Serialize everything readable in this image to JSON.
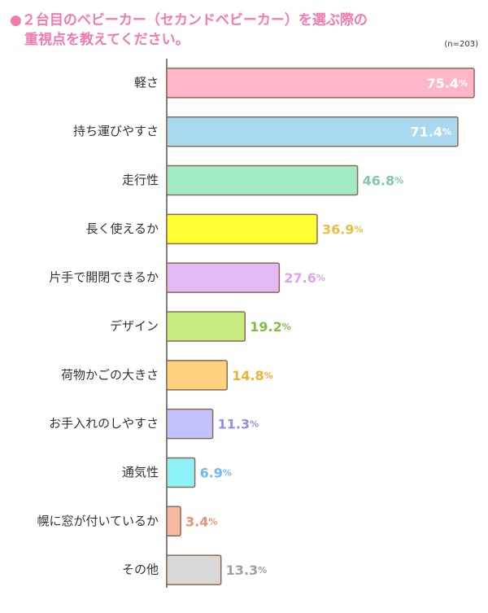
{
  "chart_data": {
    "type": "bar",
    "orientation": "horizontal",
    "title": [
      "●２台目のベビーカー（セカンドベビーカー）を選ぶ際の",
      "重視点を教えてください。"
    ],
    "note": "(n=203)",
    "categories": [
      "軽さ",
      "持ち運びやすさ",
      "走行性",
      "長く使えるか",
      "片手で開閉できるか",
      "デザイン",
      "荷物かごの大きさ",
      "お手入れのしやすさ",
      "通気性",
      "幌に窓が付いているか",
      "その他"
    ],
    "values": [
      75.4,
      71.4,
      46.8,
      36.9,
      27.6,
      19.2,
      14.8,
      11.3,
      6.9,
      3.4,
      13.3
    ],
    "value_labels": [
      "75.4%",
      "71.4%",
      "46.8%",
      "36.9%",
      "27.6%",
      "19.2%",
      "14.8%",
      "11.3%",
      "6.9%",
      "3.4%",
      "13.3%"
    ],
    "colors": [
      "#ffb6c8",
      "#a9d9ee",
      "#a2eac3",
      "#ffff33",
      "#e2b9f2",
      "#c9ec82",
      "#ffd27f",
      "#c2c2ff",
      "#8cf2f8",
      "#f8b9a2",
      "#d9d9d9"
    ],
    "label_colors": [
      "#ffffff",
      "#ffffff",
      "#80c9a8",
      "#e8c040",
      "#e0a0f0",
      "#80c040",
      "#f0b030",
      "#9090e0",
      "#70b8f0",
      "#f09070",
      "#a0a0a0"
    ]
  }
}
